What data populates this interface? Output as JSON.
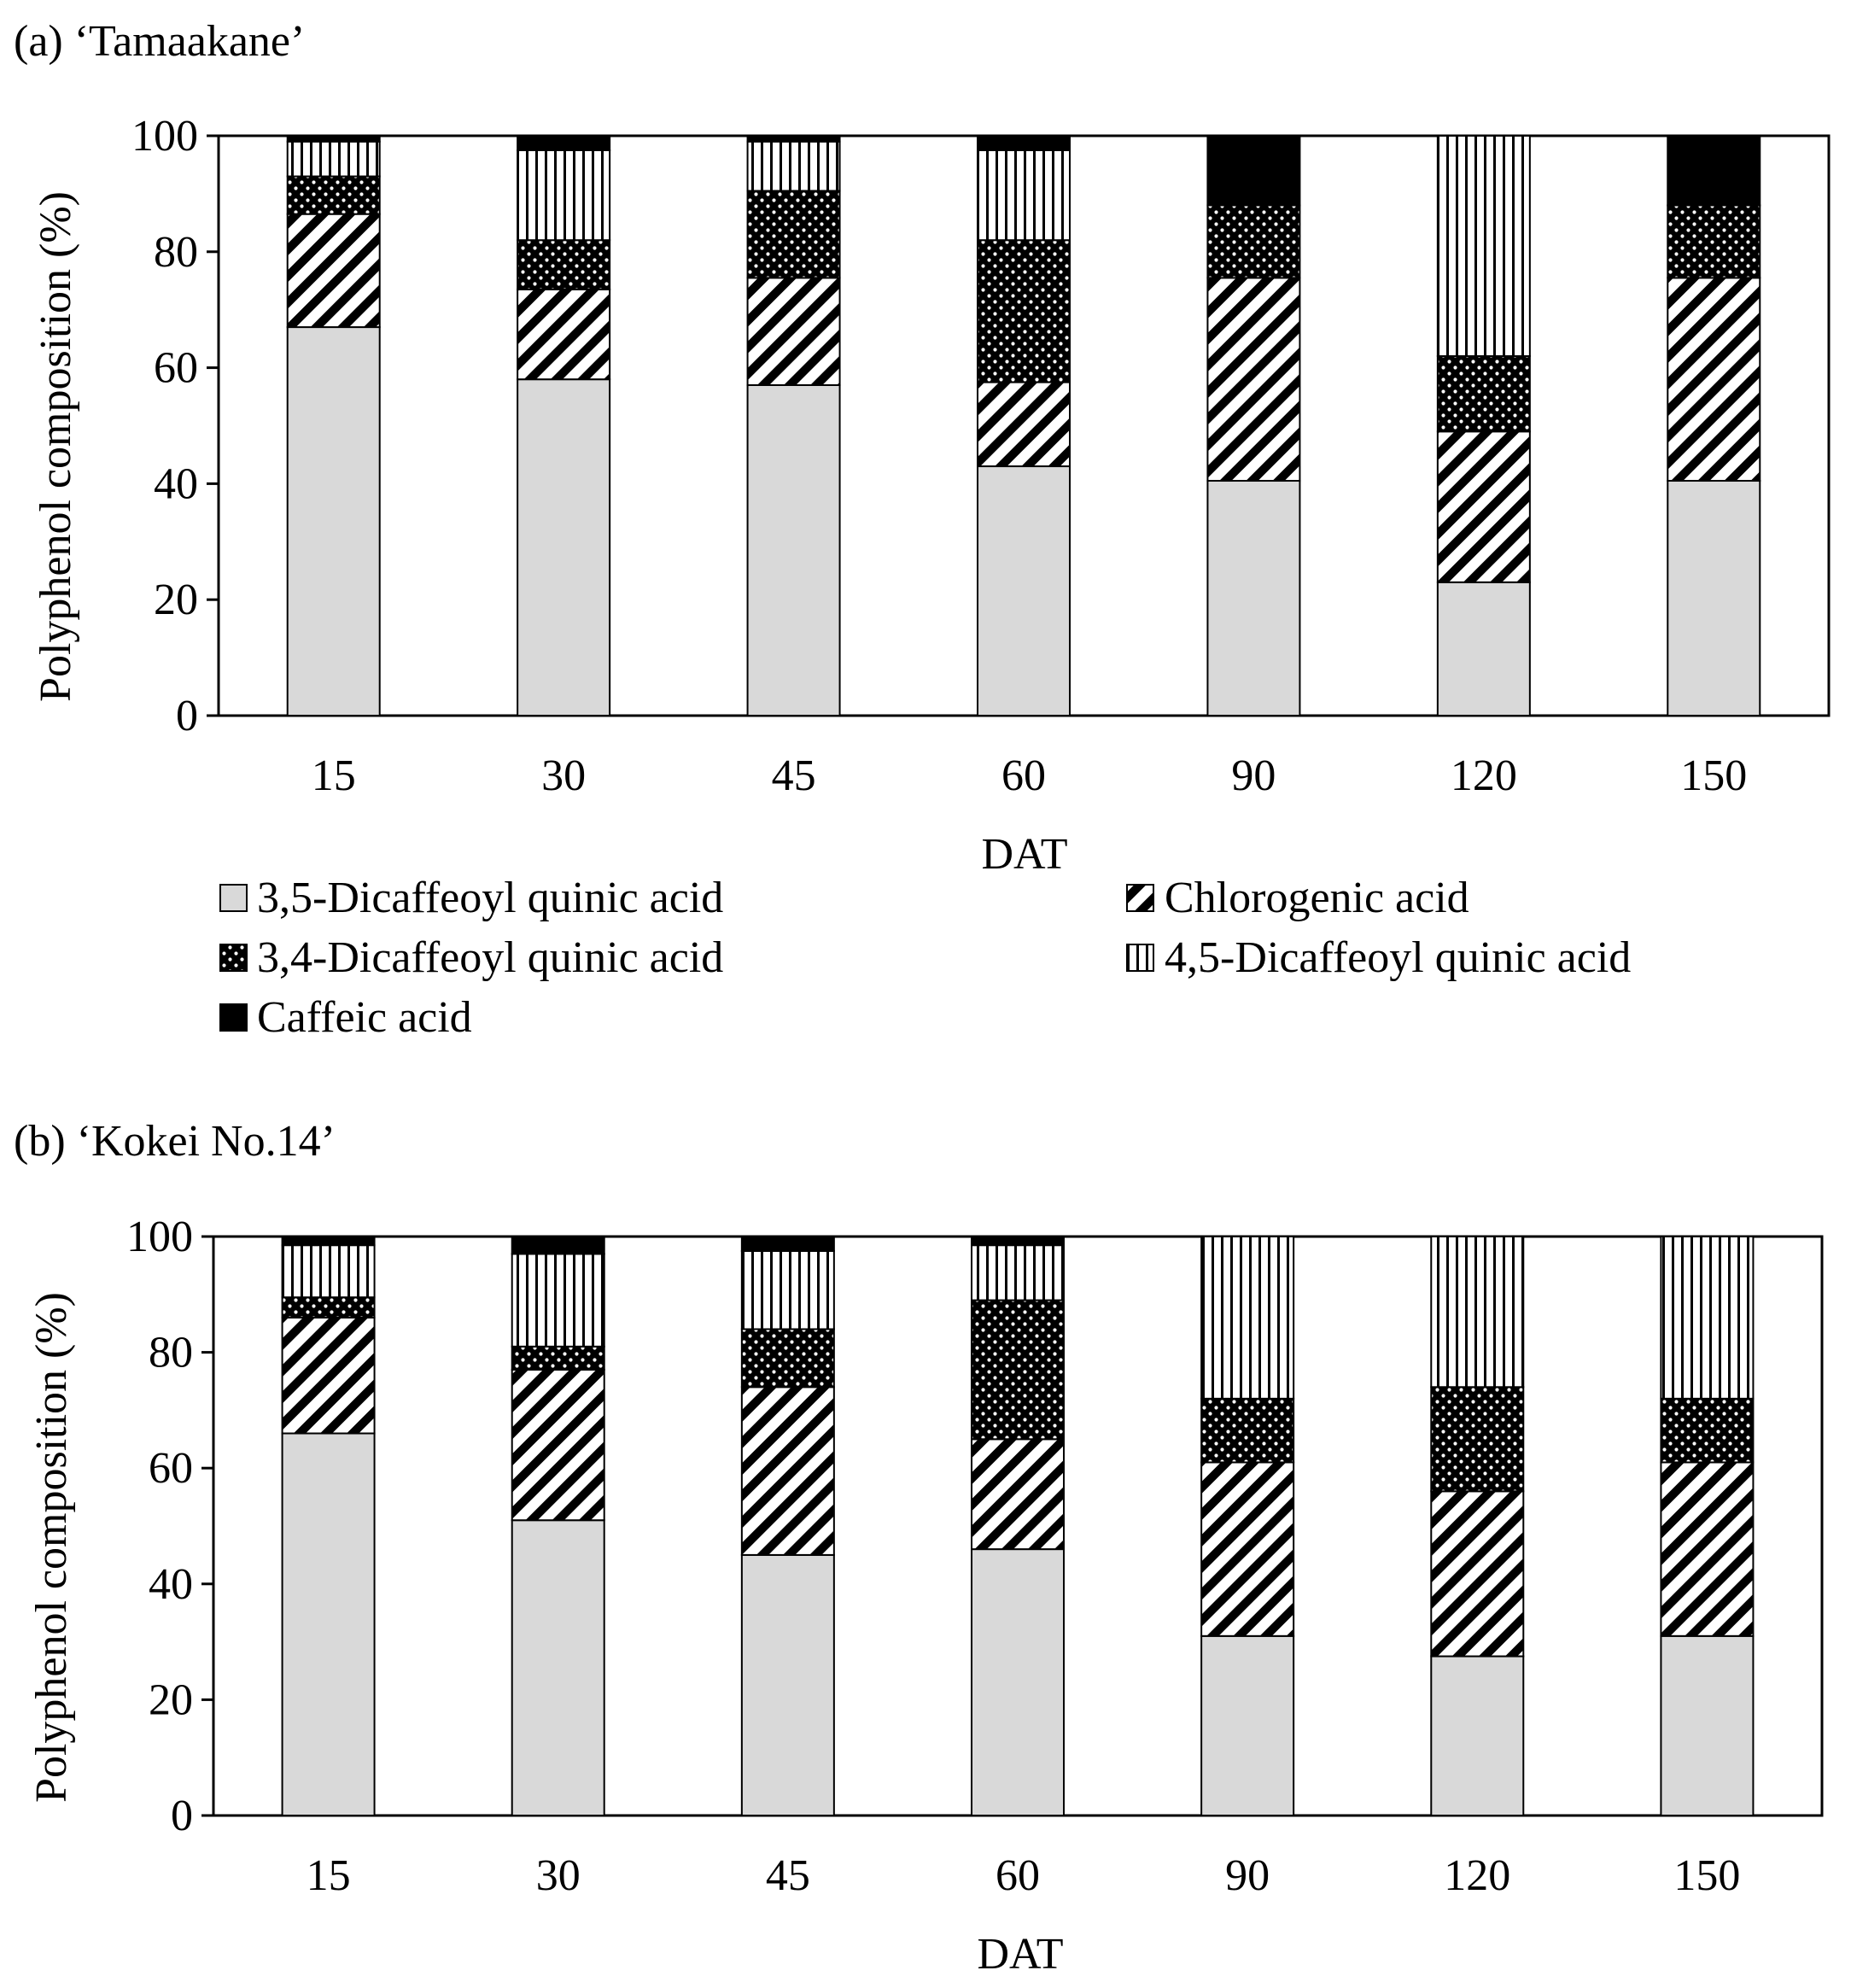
{
  "series_names": [
    "3,5-Dicaffeoyl quinic acid",
    "Chlorogenic acid",
    "3,4-Dicaffeoyl quinic acid",
    "4,5-Dicaffeoyl quinic acid",
    "Caffeic acid"
  ],
  "legend": {
    "entries": [
      {
        "label": "3,5-Dicaffeoyl quinic acid",
        "pattern": "light-gray-fill"
      },
      {
        "label": "Chlorogenic acid",
        "pattern": "diagonal-hatch"
      },
      {
        "label": "3,4-Dicaffeoyl quinic acid",
        "pattern": "dotted-black"
      },
      {
        "label": "4,5-Dicaffeoyl quinic acid",
        "pattern": "vertical-lines"
      },
      {
        "label": "Caffeic acid",
        "pattern": "solid-black"
      }
    ]
  },
  "colors": {
    "dicq35": "#d9d9d9",
    "black": "#000000",
    "white": "#ffffff"
  },
  "chart_data": [
    {
      "type": "bar",
      "stacked": true,
      "title": "(a) ‘Tamaakane’",
      "xlabel": "DAT",
      "ylabel": "Polyphenol composition (%)",
      "ylim": [
        0,
        100
      ],
      "yticks": [
        "0",
        "20",
        "40",
        "60",
        "80",
        "100"
      ],
      "categories": [
        "15",
        "30",
        "45",
        "60",
        "90",
        "120",
        "150"
      ],
      "series": [
        {
          "name": "3,5-Dicaffeoyl quinic acid",
          "values": [
            67,
            58,
            57,
            43,
            40.5,
            23,
            40.5
          ]
        },
        {
          "name": "Chlorogenic acid",
          "values": [
            19.5,
            15.5,
            18.5,
            14.5,
            35,
            26,
            35
          ]
        },
        {
          "name": "3,4-Dicaffeoyl quinic acid",
          "values": [
            6.5,
            8.5,
            15,
            24.5,
            12.5,
            13,
            12.5
          ]
        },
        {
          "name": "4,5-Dicaffeoyl quinic acid",
          "values": [
            6,
            15.5,
            8.5,
            15.5,
            0,
            38,
            0
          ]
        },
        {
          "name": "Caffeic acid",
          "values": [
            1,
            2.5,
            1,
            2.5,
            12,
            0,
            12
          ]
        }
      ]
    },
    {
      "type": "bar",
      "stacked": true,
      "title": "(b) ‘Kokei No.14’",
      "xlabel": "DAT",
      "ylabel": "Polyphenol composition (%)",
      "ylim": [
        0,
        100
      ],
      "yticks": [
        "0",
        "20",
        "40",
        "60",
        "80",
        "100"
      ],
      "categories": [
        "15",
        "30",
        "45",
        "60",
        "90",
        "120",
        "150"
      ],
      "series": [
        {
          "name": "3,5-Dicaffeoyl quinic acid",
          "values": [
            66,
            51,
            45,
            46,
            31,
            27.5,
            31
          ]
        },
        {
          "name": "Chlorogenic acid",
          "values": [
            20,
            26,
            29,
            19,
            30,
            28.5,
            30
          ]
        },
        {
          "name": "3,4-Dicaffeoyl quinic acid",
          "values": [
            3.5,
            4,
            10,
            24,
            11,
            18,
            11
          ]
        },
        {
          "name": "4,5-Dicaffeoyl quinic acid",
          "values": [
            9,
            16,
            13.5,
            9.5,
            28,
            26,
            28
          ]
        },
        {
          "name": "Caffeic acid",
          "values": [
            1.5,
            3,
            2.5,
            1.5,
            0,
            0,
            0
          ]
        }
      ]
    }
  ]
}
